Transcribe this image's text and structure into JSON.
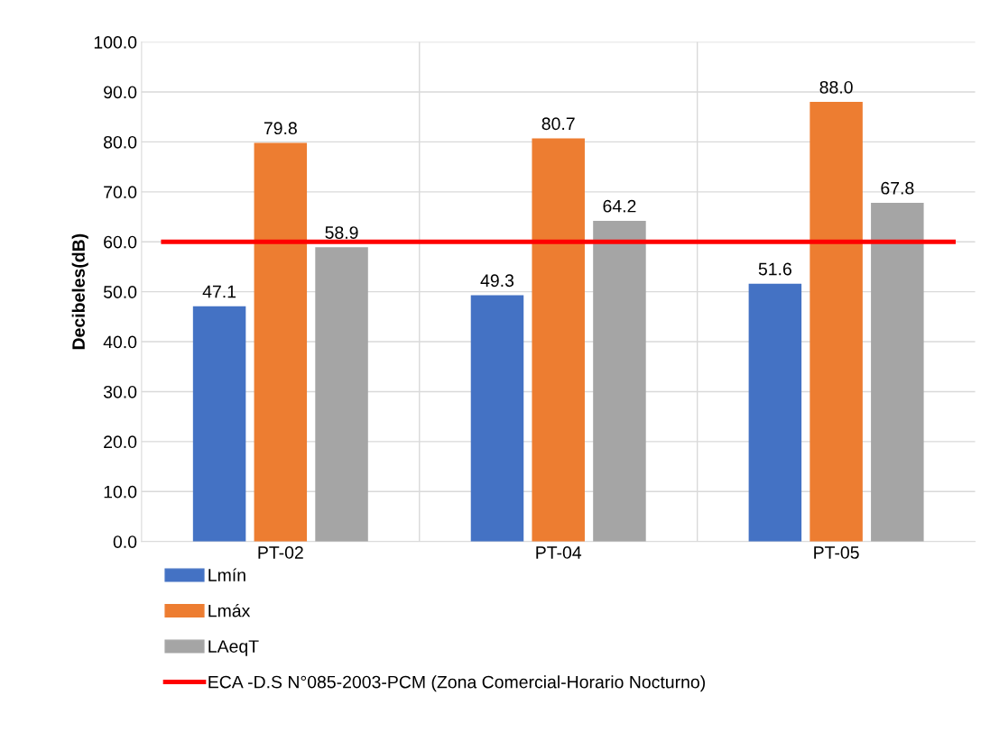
{
  "chart_data": {
    "type": "bar",
    "ylabel": "Decibeles(dB)",
    "categories": [
      "PT-02",
      "PT-04",
      "PT-05"
    ],
    "series": [
      {
        "name": "Lmín",
        "color": "#4472c4",
        "values": [
          47.1,
          49.3,
          51.6
        ]
      },
      {
        "name": "Lmáx",
        "color": "#ed7d31",
        "values": [
          79.8,
          80.7,
          88.0
        ]
      },
      {
        "name": "LAeqT",
        "color": "#a5a5a5",
        "values": [
          58.9,
          64.2,
          67.8
        ]
      }
    ],
    "value_labels": [
      [
        "47.1",
        "49.3",
        "51.6"
      ],
      [
        "79.8",
        "80.7",
        "88.0"
      ],
      [
        "58.9",
        "64.2",
        "67.8"
      ]
    ],
    "ref_lines": [
      {
        "axis": "y",
        "value": 60,
        "label": "ECA -D.S N°085-2003-PCM (Zona Comercial-Horario Nocturno)",
        "color": "#ff0000",
        "line_style": "solid"
      }
    ],
    "ylim": [
      0,
      100
    ],
    "yticks": [
      {
        "value": 0,
        "label": "0.0"
      },
      {
        "value": 10,
        "label": "10.0"
      },
      {
        "value": 20,
        "label": "20.0"
      },
      {
        "value": 30,
        "label": "30.0"
      },
      {
        "value": 40,
        "label": "40.0"
      },
      {
        "value": 50,
        "label": "50.0"
      },
      {
        "value": 60,
        "label": "60.0"
      },
      {
        "value": 70,
        "label": "70.0"
      },
      {
        "value": 80,
        "label": "80.0"
      },
      {
        "value": 90,
        "label": "90.0"
      },
      {
        "value": 100,
        "label": "100.0"
      }
    ],
    "grid": true,
    "legend": "bottom left"
  }
}
